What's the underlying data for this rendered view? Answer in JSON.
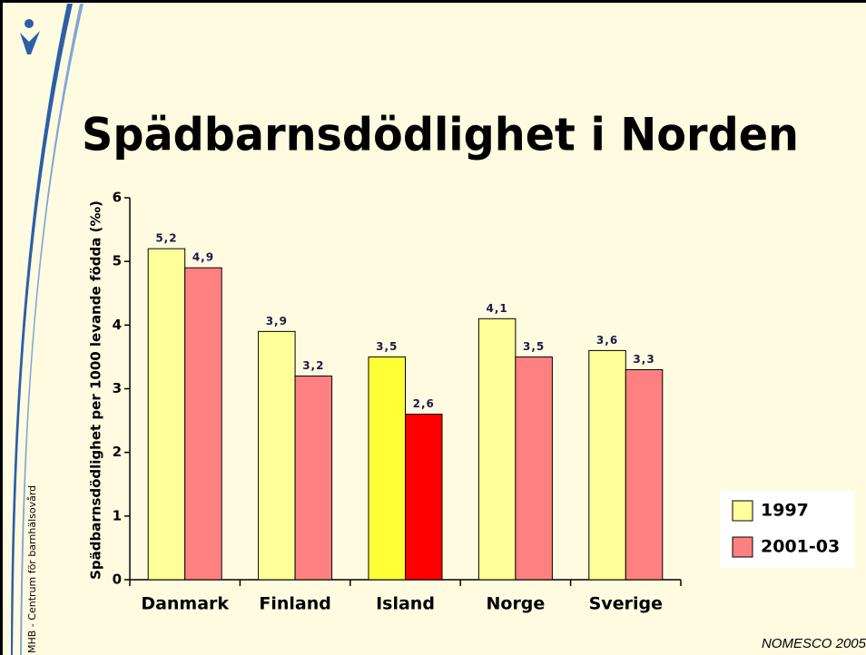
{
  "chart_data": {
    "type": "bar",
    "title": "Spädbarnsdödlighet i Norden",
    "y_label": "Spädbarnsdödlighet per 1000 levande födda (‰)",
    "side_text": "MHB - Centrum för barnhälsovård",
    "source": "NOMESCO 2005",
    "categories": [
      "Danmark",
      "Finland",
      "Island",
      "Norge",
      "Sverige"
    ],
    "series": [
      {
        "name": "1997",
        "color": "#ffff99",
        "colors": [
          "#ffff99",
          "#ffff99",
          "#ffff33",
          "#ffff99",
          "#ffff99"
        ],
        "values": [
          5.2,
          3.9,
          3.5,
          4.1,
          3.6
        ],
        "value_labels": [
          "5,2",
          "3,9",
          "3,5",
          "4,1",
          "3,6"
        ]
      },
      {
        "name": "2001-03",
        "color": "#ff8080",
        "colors": [
          "#ff8080",
          "#ff8080",
          "#ff0000",
          "#ff8080",
          "#ff8080"
        ],
        "values": [
          4.9,
          3.2,
          2.6,
          3.5,
          3.3
        ],
        "value_labels": [
          "4,9",
          "3,2",
          "2,6",
          "3,5",
          "3,3"
        ]
      }
    ],
    "ylim": [
      0,
      6
    ],
    "yticks": [
      0,
      1,
      2,
      3,
      4,
      5,
      6
    ]
  }
}
